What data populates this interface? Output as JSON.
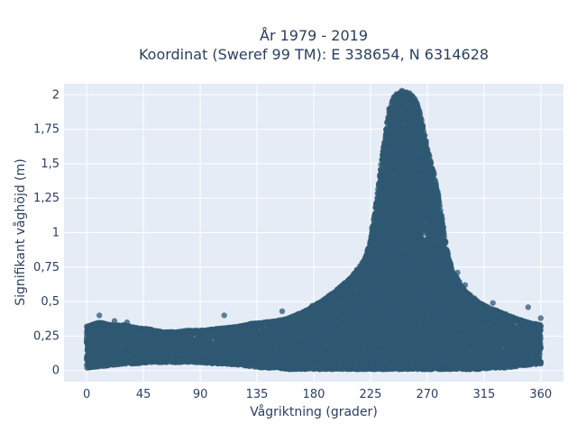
{
  "chart_data": {
    "type": "scatter",
    "title": "År 1979 - 2019",
    "subtitle": "Koordinat (Sweref 99 TM): E 338654, N 6314628",
    "xlabel": "Vågriktning (grader)",
    "ylabel": "Signifikant våghöjd (m)",
    "xlim": [
      -18,
      378
    ],
    "ylim": [
      -0.08,
      2.08
    ],
    "x_ticks": [
      0,
      45,
      90,
      135,
      180,
      225,
      270,
      315,
      360
    ],
    "x_tick_labels": [
      "0",
      "45",
      "90",
      "135",
      "180",
      "225",
      "270",
      "315",
      "360"
    ],
    "y_ticks": [
      0,
      0.25,
      0.5,
      0.75,
      1,
      1.25,
      1.5,
      1.75,
      2
    ],
    "y_tick_labels": [
      "0",
      "0,25",
      "0,5",
      "0,75",
      "1",
      "1,25",
      "1,5",
      "1,75",
      "2"
    ],
    "grid": true,
    "plot_background": "#e5ecf6",
    "marker_color": "#2f5873",
    "series": [
      {
        "x": [
          0,
          10,
          20,
          30,
          40,
          50,
          60,
          70,
          80,
          90,
          100,
          110,
          120,
          130,
          140,
          150,
          160,
          170,
          180,
          190,
          200,
          210,
          215,
          220,
          225,
          230,
          235,
          240,
          245,
          250,
          255,
          260,
          265,
          270,
          275,
          280,
          285,
          290,
          295,
          300,
          310,
          320,
          330,
          340,
          350,
          360
        ],
        "y_min": [
          0.02,
          0.03,
          0.04,
          0.05,
          0.05,
          0.06,
          0.06,
          0.06,
          0.06,
          0.06,
          0.05,
          0.05,
          0.04,
          0.03,
          0.02,
          0.02,
          0.01,
          0.01,
          0.01,
          0.01,
          0.01,
          0.01,
          0.01,
          0.01,
          0.01,
          0.01,
          0.01,
          0.01,
          0.01,
          0.01,
          0.01,
          0.01,
          0.01,
          0.01,
          0.01,
          0.01,
          0.01,
          0.01,
          0.01,
          0.01,
          0.01,
          0.02,
          0.02,
          0.03,
          0.04,
          0.05
        ],
        "y_max": [
          0.32,
          0.35,
          0.33,
          0.33,
          0.31,
          0.3,
          0.28,
          0.28,
          0.29,
          0.29,
          0.3,
          0.31,
          0.32,
          0.34,
          0.35,
          0.36,
          0.38,
          0.42,
          0.47,
          0.53,
          0.6,
          0.68,
          0.74,
          0.8,
          0.95,
          1.25,
          1.6,
          1.9,
          2.02,
          2.03,
          2.02,
          1.98,
          1.85,
          1.62,
          1.45,
          1.2,
          0.9,
          0.72,
          0.65,
          0.58,
          0.5,
          0.45,
          0.42,
          0.38,
          0.35,
          0.33
        ]
      }
    ],
    "outliers": [
      {
        "x": 10,
        "y": 0.4
      },
      {
        "x": 22,
        "y": 0.36
      },
      {
        "x": 32,
        "y": 0.35
      },
      {
        "x": 109,
        "y": 0.4
      },
      {
        "x": 155,
        "y": 0.43
      },
      {
        "x": 179,
        "y": 0.47
      },
      {
        "x": 210,
        "y": 0.67
      },
      {
        "x": 217,
        "y": 0.73
      },
      {
        "x": 228,
        "y": 0.88
      },
      {
        "x": 294,
        "y": 0.71
      },
      {
        "x": 300,
        "y": 0.62
      },
      {
        "x": 322,
        "y": 0.49
      },
      {
        "x": 350,
        "y": 0.46
      },
      {
        "x": 360,
        "y": 0.38
      }
    ]
  }
}
